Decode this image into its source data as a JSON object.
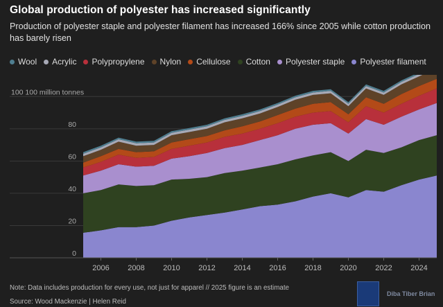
{
  "header": {
    "title": "Global production of polyester has increased significantly",
    "subtitle": "Production of polyester staple and polyester filament has increased 166% since 2005 while cotton production has barely risen"
  },
  "footer": {
    "note": "Note: Data includes production for every use, not just for apparel // 2025 figure is an estimate",
    "source": "Source: Wood Mackenzie | Helen Reid",
    "logo_text": "Diba Tiber Brian"
  },
  "chart_data": {
    "type": "area",
    "stacked": true,
    "unit_label": "100 million tonnes",
    "x": [
      2005,
      2006,
      2007,
      2008,
      2009,
      2010,
      2011,
      2012,
      2013,
      2014,
      2015,
      2016,
      2017,
      2018,
      2019,
      2020,
      2021,
      2022,
      2023,
      2024,
      2025
    ],
    "x_ticks": [
      2006,
      2008,
      2010,
      2012,
      2014,
      2016,
      2018,
      2020,
      2022,
      2024
    ],
    "y_ticks": [
      0,
      20,
      40,
      60,
      80,
      100
    ],
    "ylim": [
      0,
      110
    ],
    "grid": true,
    "legend_position": "top",
    "series": [
      {
        "name": "Polyester filament",
        "color": "#8a86cf",
        "values": [
          15.5,
          17,
          19,
          19,
          20,
          23,
          25,
          26.5,
          28,
          30,
          32,
          33,
          35,
          38,
          40,
          37.5,
          42,
          41,
          45,
          48.5,
          51
        ]
      },
      {
        "name": "Polyester staple",
        "color": "#6a5a9e",
        "values": [
          0,
          0,
          0,
          0,
          0,
          0,
          0,
          0,
          0,
          0,
          0,
          0,
          0,
          0,
          0,
          0,
          0,
          0,
          0,
          0,
          0
        ]
      },
      {
        "name": "Cotton",
        "color": "#2f4220",
        "values": [
          24.5,
          25,
          26.5,
          25.5,
          25,
          25.5,
          24,
          23.5,
          24.5,
          24,
          24,
          25,
          26,
          25.5,
          25.5,
          22.5,
          25,
          24,
          23.5,
          24.5,
          25
        ]
      },
      {
        "name": "Polyester staple",
        "color": "#a98fce",
        "values": [
          11,
          12,
          12.5,
          12,
          12,
          13,
          14,
          15,
          15.5,
          16,
          17,
          18,
          19,
          19,
          18,
          17,
          19,
          17.5,
          19,
          19,
          20
        ]
      },
      {
        "name": "Polypropylene",
        "color": "#b8303b",
        "values": [
          5,
          5.5,
          6,
          5.5,
          5.5,
          6,
          6.5,
          6.5,
          7,
          7,
          7,
          7.5,
          7.5,
          7.5,
          7.5,
          7,
          8,
          7.5,
          8,
          8.5,
          9
        ]
      },
      {
        "name": "Cellulose",
        "color": "#b34a18",
        "values": [
          3,
          3.5,
          3.5,
          3.5,
          3.5,
          4,
          4,
          4,
          4,
          4.5,
          4.5,
          5,
          5,
          5.5,
          5.5,
          5,
          5.5,
          5.5,
          6,
          6,
          6
        ]
      },
      {
        "name": "Nylon",
        "color": "#5e4228",
        "values": [
          4,
          4,
          4.5,
          4,
          4,
          4.5,
          4.5,
          4.5,
          5,
          5,
          5,
          5,
          5.5,
          5.5,
          5.5,
          5,
          5.5,
          5.5,
          6,
          6,
          6.5
        ]
      },
      {
        "name": "Acrylic",
        "color": "#a7a9b6",
        "values": [
          1.5,
          1.5,
          1.5,
          1.5,
          1.5,
          1.5,
          1.5,
          1.5,
          1.5,
          1.5,
          1.5,
          1.5,
          1.5,
          1.5,
          1.5,
          1.5,
          1.5,
          1.5,
          1.5,
          1.5,
          1.5
        ]
      },
      {
        "name": "Wool",
        "color": "#4f7e90",
        "values": [
          1,
          1,
          1,
          1,
          1,
          1,
          1,
          1,
          1,
          1,
          1,
          1,
          1,
          1,
          1,
          1,
          1,
          1,
          1,
          1,
          1
        ]
      }
    ],
    "legend": [
      {
        "name": "Wool",
        "color": "#4f7e90"
      },
      {
        "name": "Acrylic",
        "color": "#a7a9b6"
      },
      {
        "name": "Polypropylene",
        "color": "#b8303b"
      },
      {
        "name": "Nylon",
        "color": "#5e4228"
      },
      {
        "name": "Cellulose",
        "color": "#b34a18"
      },
      {
        "name": "Cotton",
        "color": "#2f4220"
      },
      {
        "name": "Polyester staple",
        "color": "#a98fce"
      },
      {
        "name": "Polyester filament",
        "color": "#8a86cf"
      }
    ]
  }
}
